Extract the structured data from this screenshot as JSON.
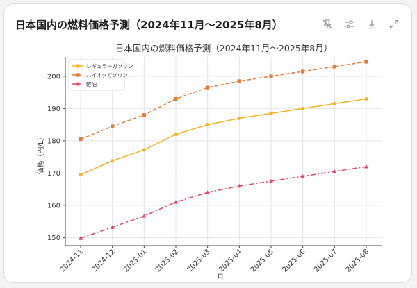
{
  "card": {
    "title": "日本国内の燃料価格予測（2024年11月～2025年8月）",
    "tools": [
      {
        "icon": "pin-off-icon",
        "label": "pin"
      },
      {
        "icon": "sliders-icon",
        "label": "adjust"
      },
      {
        "icon": "download-icon",
        "label": "download"
      },
      {
        "icon": "expand-icon",
        "label": "expand"
      }
    ]
  },
  "chart_data": {
    "type": "line",
    "title": "日本国内の燃料価格予測（2024年11月～2025年8月）",
    "xlabel": "月",
    "ylabel": "価格（円/L）",
    "categories": [
      "2024-11",
      "2024-12",
      "2025-01",
      "2025-02",
      "2025-03",
      "2025-04",
      "2025-05",
      "2025-06",
      "2025-07",
      "2025-08"
    ],
    "ylim": [
      147.5,
      206.0
    ],
    "yticks": [
      150,
      160,
      170,
      180,
      190,
      200
    ],
    "grid": true,
    "legend_position": "top-left",
    "series": [
      {
        "name": "レギュラーガソリン",
        "color": "#f0b429",
        "marker": "circle",
        "dash": "solid",
        "values": [
          169.5,
          173.8,
          177.2,
          182.0,
          185.0,
          187.0,
          188.5,
          190.0,
          191.5,
          193.0
        ]
      },
      {
        "name": "ハイオクガソリン",
        "color": "#e07b39",
        "marker": "square",
        "dash": "dashed",
        "values": [
          180.5,
          184.5,
          188.0,
          193.0,
          196.5,
          198.5,
          200.0,
          201.5,
          203.0,
          204.5
        ]
      },
      {
        "name": "軽油",
        "color": "#d94a6a",
        "marker": "triangle",
        "dash": "dashdot",
        "values": [
          149.8,
          153.2,
          156.7,
          161.0,
          164.0,
          166.0,
          167.5,
          169.0,
          170.5,
          172.0
        ]
      }
    ]
  }
}
